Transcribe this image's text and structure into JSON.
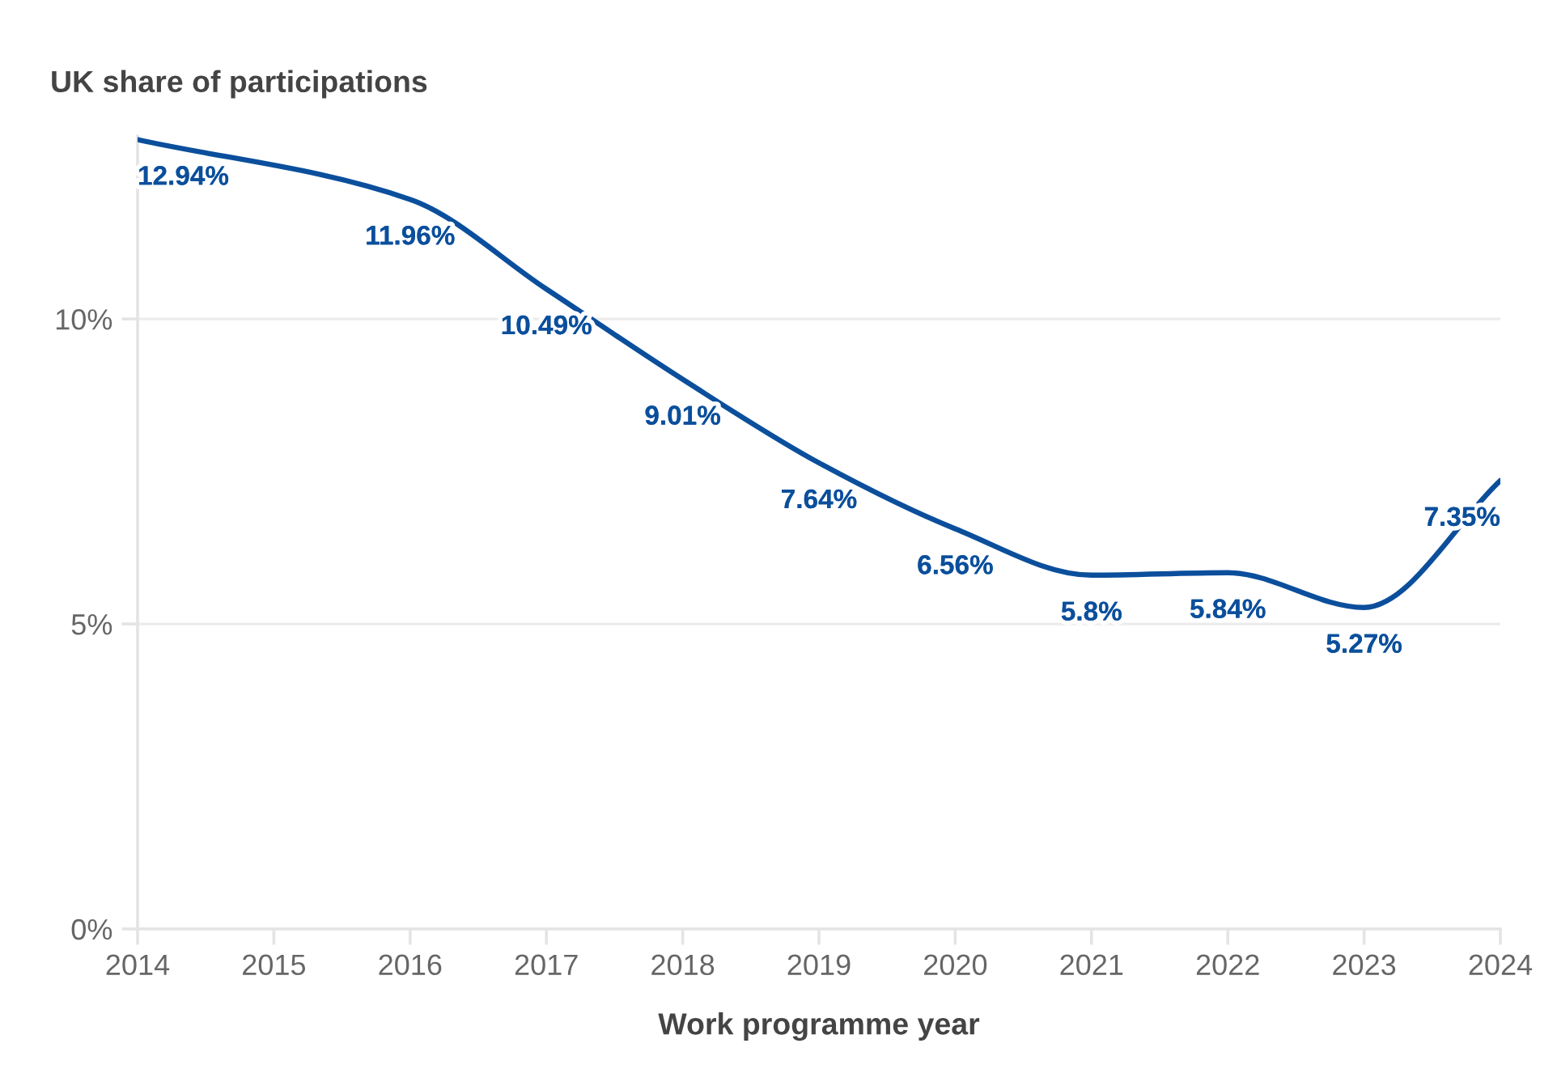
{
  "chart_data": {
    "type": "line",
    "title": "UK share of participations",
    "xlabel": "Work programme year",
    "x": [
      2014,
      2016,
      2017,
      2018,
      2019,
      2020,
      2021,
      2022,
      2023,
      2024
    ],
    "series": [
      {
        "color": "#0b4f9c",
        "values": [
          12.94,
          11.96,
          10.49,
          9.01,
          7.64,
          6.56,
          5.8,
          5.84,
          5.27,
          7.35
        ],
        "value_labels": [
          "12.94%",
          "11.96%",
          "10.49%",
          "9.01%",
          "7.64%",
          "6.56%",
          "5.8%",
          "5.84%",
          "5.27%",
          "7.35%"
        ]
      }
    ],
    "xlim": [
      2014,
      2024
    ],
    "xticks": [
      2014,
      2015,
      2016,
      2017,
      2018,
      2019,
      2020,
      2021,
      2022,
      2023,
      2024
    ],
    "ylim": [
      0,
      13
    ],
    "yticks": [
      {
        "value": 0,
        "label": "0%"
      },
      {
        "value": 5,
        "label": "5%"
      },
      {
        "value": 10,
        "label": "10%"
      }
    ],
    "grid": "y",
    "marker": "none",
    "line_style": "solid"
  }
}
